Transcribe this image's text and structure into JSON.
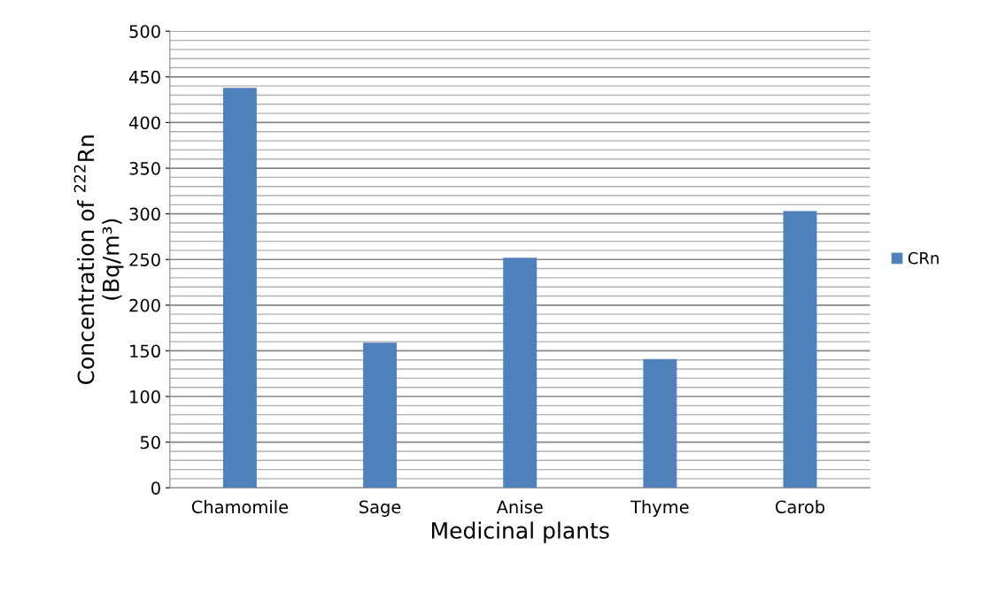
{
  "chart_data": {
    "type": "bar",
    "xlabel": "Medicinal plants",
    "ylabel": "Concentration of $^{222}$Rn\n(Bq/m³)",
    "categories": [
      "Chamomile",
      "Sage",
      "Anise",
      "Thyme",
      "Carob"
    ],
    "series": [
      {
        "name": "CRn",
        "color": "#4f81bd",
        "values": [
          438,
          159,
          252,
          141,
          303
        ]
      }
    ],
    "ylim": [
      0,
      500
    ],
    "yticks": [
      0,
      50,
      100,
      150,
      200,
      250,
      300,
      350,
      400,
      450,
      500
    ],
    "grid": "y",
    "legend": "right"
  }
}
